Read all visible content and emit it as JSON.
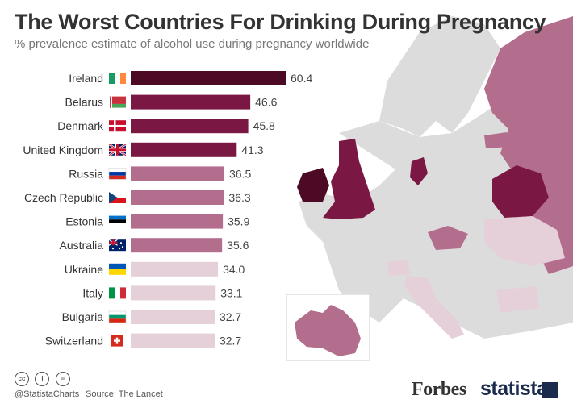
{
  "title": "The Worst Countries For Drinking During Pregnancy",
  "subtitle": "% prevalence estimate of alcohol use during pregnancy worldwide",
  "chart_data": {
    "type": "bar",
    "orientation": "horizontal",
    "categories": [
      "Ireland",
      "Belarus",
      "Denmark",
      "United Kingdom",
      "Russia",
      "Czech Republic",
      "Estonia",
      "Australia",
      "Ukraine",
      "Italy",
      "Bulgaria",
      "Switzerland"
    ],
    "values": [
      60.4,
      46.6,
      45.8,
      41.3,
      36.5,
      36.3,
      35.9,
      35.6,
      34.0,
      33.1,
      32.7,
      32.7
    ],
    "value_labels": [
      "60.4",
      "46.6",
      "45.8",
      "41.3",
      "36.5",
      "36.3",
      "35.9",
      "35.6",
      "34.0",
      "33.1",
      "32.7",
      "32.7"
    ],
    "colors": [
      "#4d0a25",
      "#7a1843",
      "#7a1843",
      "#7a1843",
      "#b46e8d",
      "#b46e8d",
      "#b46e8d",
      "#b46e8d",
      "#e5cfd8",
      "#e5cfd8",
      "#e5cfd8",
      "#e5cfd8"
    ],
    "flags": [
      "ireland-flag",
      "belarus-flag",
      "denmark-flag",
      "uk-flag",
      "russia-flag",
      "czech-flag",
      "estonia-flag",
      "australia-flag",
      "ukraine-flag",
      "italy-flag",
      "bulgaria-flag",
      "switzerland-flag"
    ],
    "xlim": [
      0,
      60.4
    ]
  },
  "footer": {
    "handle": "@StatistaCharts",
    "source": "Source: The Lancet",
    "cc_icons": [
      "cc",
      "i",
      "="
    ],
    "forbes": "Forbes",
    "statista": "statista"
  }
}
